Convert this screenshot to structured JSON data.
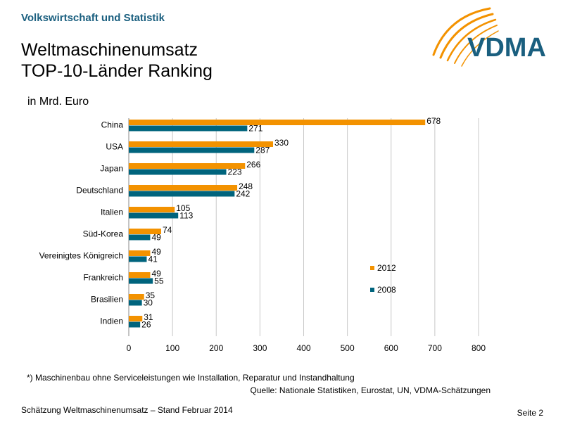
{
  "header": {
    "section_label": "Volkswirtschaft und Statistik",
    "title_line1": "Weltmaschinenumsatz",
    "title_line2": "TOP-10-Länder Ranking",
    "unit_label": "in Mrd. Euro"
  },
  "logo": {
    "text": "VDMA"
  },
  "colors": {
    "series_2012": "#f39200",
    "series_2008": "#00647d",
    "header": "#1a5f7f"
  },
  "chart_data": {
    "type": "bar",
    "orientation": "horizontal",
    "categories": [
      "China",
      "USA",
      "Japan",
      "Deutschland",
      "Italien",
      "Süd-Korea",
      "Vereinigtes Königreich",
      "Frankreich",
      "Brasilien",
      "Indien"
    ],
    "series": [
      {
        "name": "2012",
        "color": "#f39200",
        "values": [
          678,
          330,
          266,
          248,
          105,
          74,
          49,
          49,
          35,
          31
        ]
      },
      {
        "name": "2008",
        "color": "#00647d",
        "values": [
          271,
          287,
          223,
          242,
          113,
          49,
          41,
          55,
          30,
          26
        ]
      }
    ],
    "xlim": [
      0,
      800
    ],
    "xticks": [
      0,
      100,
      200,
      300,
      400,
      500,
      600,
      700,
      800
    ],
    "grid": "vertical",
    "legend": "right"
  },
  "footer": {
    "footnote": "*) Maschinenbau ohne Serviceleistungen  wie Installation, Reparatur und Instandhaltung",
    "source": "Quelle: Nationale Statistiken, Eurostat, UN, VDMA-Schätzungen",
    "left": "Schätzung Weltmaschinenumsatz – Stand Februar 2014",
    "page": "Seite 2"
  }
}
